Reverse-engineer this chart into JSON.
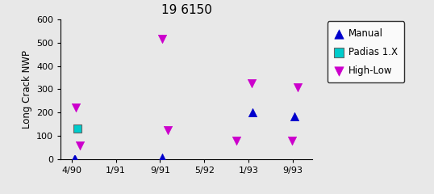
{
  "title": "19 6150",
  "ylabel": "Long Crack NWP",
  "xlabel": "",
  "ylim": [
    0,
    600
  ],
  "yticks": [
    0,
    100,
    200,
    300,
    400,
    500,
    600
  ],
  "xtick_labels": [
    "4/90",
    "1/91",
    "9/91",
    "5/92",
    "1/93",
    "9/93"
  ],
  "xtick_positions": [
    0,
    1,
    2,
    3,
    4,
    5
  ],
  "manual_x": [
    0.05,
    0.08,
    2.05,
    4.1,
    5.05
  ],
  "manual_y": [
    0,
    0,
    5,
    200,
    185
  ],
  "padias_x": [
    0.12
  ],
  "padias_y": [
    130
  ],
  "high_low_x": [
    0.1,
    0.18,
    2.05,
    2.18,
    3.72,
    4.08,
    4.98,
    5.12
  ],
  "high_low_y": [
    220,
    60,
    515,
    125,
    80,
    325,
    80,
    310
  ],
  "manual_color": "#0000cc",
  "padias_color": "#00cccc",
  "high_low_color": "#cc00cc",
  "bg_color": "#e8e8e8",
  "title_fontsize": 11,
  "label_fontsize": 8.5,
  "tick_fontsize": 8
}
